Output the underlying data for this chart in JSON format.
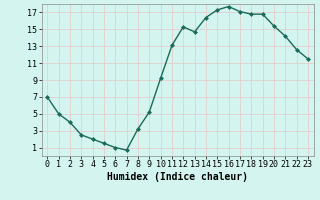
{
  "x": [
    0,
    1,
    2,
    3,
    4,
    5,
    6,
    7,
    8,
    9,
    10,
    11,
    12,
    13,
    14,
    15,
    16,
    17,
    18,
    19,
    20,
    21,
    22,
    23
  ],
  "y": [
    7,
    5,
    4,
    2.5,
    2,
    1.5,
    1,
    0.7,
    3.2,
    5.2,
    9.2,
    13.1,
    15.3,
    14.7,
    16.4,
    17.3,
    17.7,
    17.1,
    16.8,
    16.8,
    15.4,
    14.2,
    12.6,
    11.5
  ],
  "line_color": "#1a6b5a",
  "marker": "D",
  "marker_size": 2,
  "background_color": "#d4f5ef",
  "grid_color": "#e8c8c8",
  "xlabel": "Humidex (Indice chaleur)",
  "xlabel_fontsize": 7,
  "tick_fontsize": 6,
  "xlim": [
    -0.5,
    23.5
  ],
  "ylim": [
    0,
    18
  ],
  "yticks": [
    1,
    3,
    5,
    7,
    9,
    11,
    13,
    15,
    17
  ],
  "xticks": [
    0,
    1,
    2,
    3,
    4,
    5,
    6,
    7,
    8,
    9,
    10,
    11,
    12,
    13,
    14,
    15,
    16,
    17,
    18,
    19,
    20,
    21,
    22,
    23
  ],
  "linewidth": 1.0,
  "spine_color": "#888888"
}
